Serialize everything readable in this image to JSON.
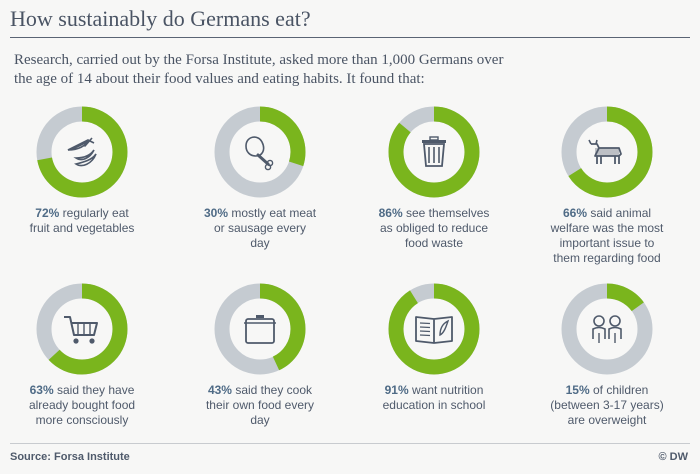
{
  "title": "How sustainably do Germans eat?",
  "intro": "Research, carried out by the Forsa Institute, asked more than 1,000 Germans over the age of 14 about their food values and eating habits. It found that:",
  "colors": {
    "accent": "#7ab51d",
    "track": "#c5cbd1",
    "icon": "#4f5a6b"
  },
  "chart_data": {
    "type": "pie",
    "categories": [
      "regularly eat fruit and vegetables",
      "mostly eat meat or sausage every day",
      "see themselves as obliged to reduce food waste",
      "said animal welfare was the most important issue to them regarding food",
      "said they have already bought food more consciously",
      "said they cook their own food every day",
      "want nutrition education in school",
      "of children (between 3-17 years) are overweight"
    ],
    "values": [
      72,
      30,
      86,
      66,
      63,
      43,
      91,
      15
    ],
    "items": [
      {
        "value": 72,
        "pct_label": "72%",
        "text_lines": [
          " regularly eat",
          "fruit and vegetables"
        ],
        "icon": "carrot-banana-icon"
      },
      {
        "value": 30,
        "pct_label": "30%",
        "text_lines": [
          " mostly eat meat",
          "or sausage every",
          "day"
        ],
        "icon": "chicken-leg-icon"
      },
      {
        "value": 86,
        "pct_label": "86%",
        "text_lines": [
          " see themselves",
          "as obliged to reduce",
          "food waste"
        ],
        "icon": "trash-can-icon"
      },
      {
        "value": 66,
        "pct_label": "66%",
        "text_lines": [
          " said animal",
          "welfare was the most",
          "important issue to",
          "them regarding food"
        ],
        "icon": "cow-icon"
      },
      {
        "value": 63,
        "pct_label": "63%",
        "text_lines": [
          " said they have",
          "already bought  food",
          "more consciously"
        ],
        "icon": "shopping-cart-icon"
      },
      {
        "value": 43,
        "pct_label": "43%",
        "text_lines": [
          " said they cook",
          "their own food every",
          "day"
        ],
        "icon": "cooking-pot-icon"
      },
      {
        "value": 91,
        "pct_label": "91%",
        "text_lines": [
          " want nutrition",
          "education in school"
        ],
        "icon": "book-icon"
      },
      {
        "value": 15,
        "pct_label": "15%",
        "text_lines": [
          " of children",
          "(between 3-17 years)",
          "are overweight"
        ],
        "icon": "children-icon"
      }
    ]
  },
  "footer": {
    "source": "Source: Forsa Institute",
    "brand": "© DW"
  }
}
